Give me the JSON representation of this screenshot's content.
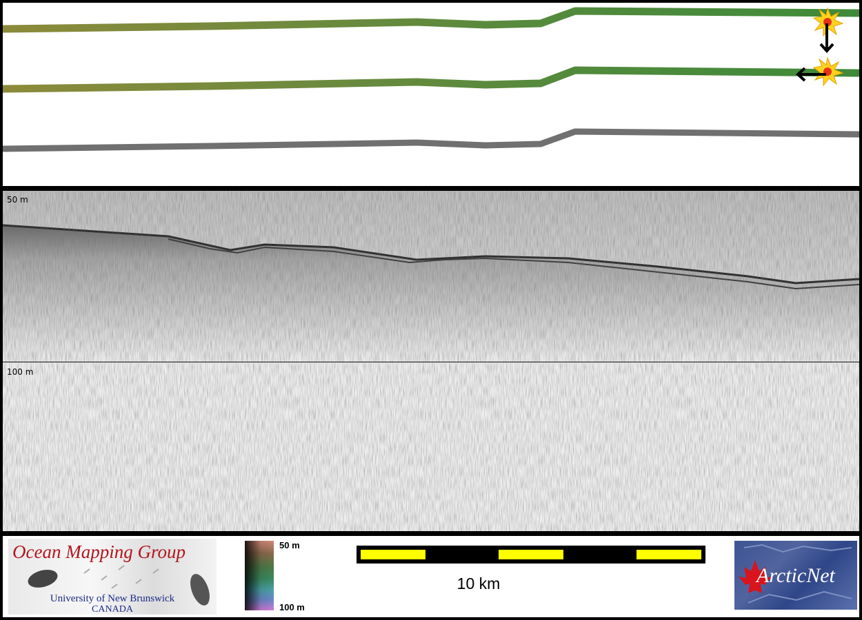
{
  "profile": {
    "depth_top_label": "50 m",
    "depth_mid_label": "100 m"
  },
  "logo_ocean": {
    "title": "Ocean Mapping Group",
    "subtitle": "University of New Brunswick",
    "country": "CANADA"
  },
  "colorbar": {
    "top_label": "50 m",
    "bottom_label": "100 m"
  },
  "scale": {
    "label": "10 km",
    "segment_color": "#ffff00"
  },
  "logo_arctic": {
    "text": "ArcticNet"
  },
  "icons": [
    "starburst-marker-icon",
    "arrow-down-icon",
    "arrow-left-icon",
    "maple-leaf-icon"
  ]
}
